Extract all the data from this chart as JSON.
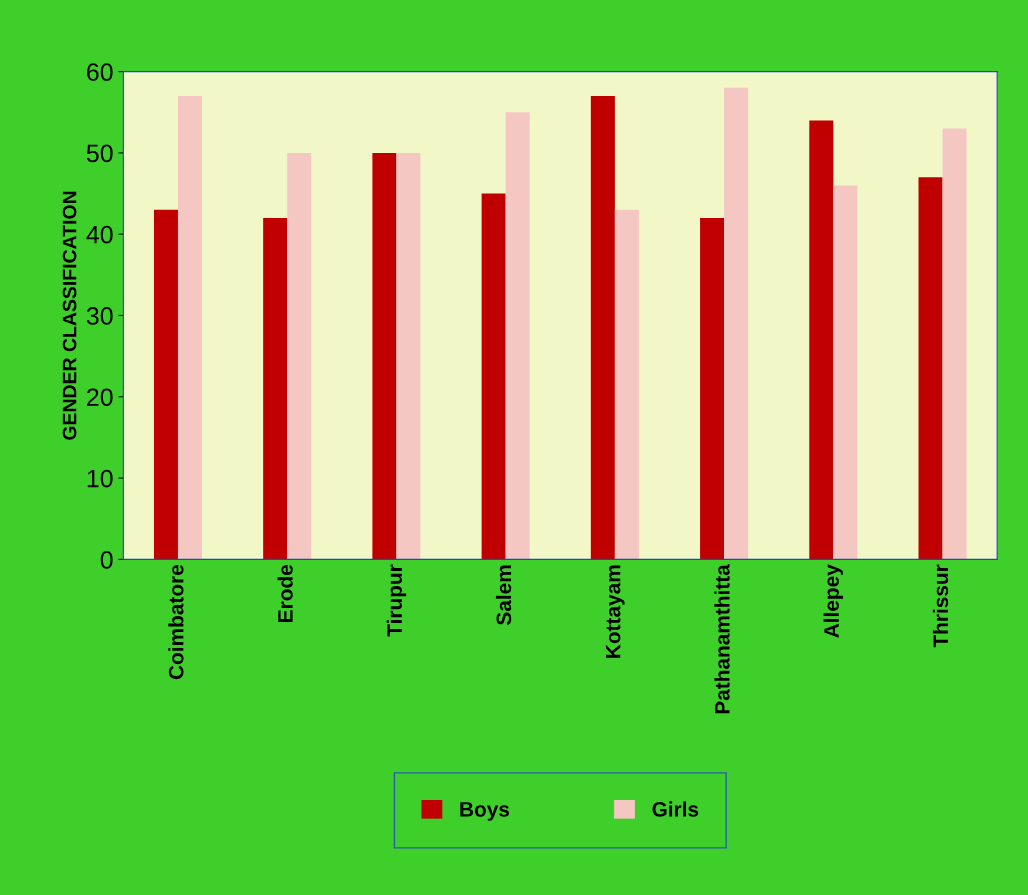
{
  "chart_data": {
    "type": "bar",
    "ylabel": "GENDER CLASSIFICATION",
    "categories": [
      "Coimbatore",
      "Erode",
      "Tirupur",
      "Salem",
      "Kottayam",
      "Pathanamthitta",
      "Allepey",
      "Thrissur"
    ],
    "series": [
      {
        "name": "Boys",
        "color": "#c00000",
        "values": [
          43,
          42,
          50,
          45,
          57,
          42,
          54,
          47
        ]
      },
      {
        "name": "Girls",
        "color": "#f4c7c3",
        "values": [
          57,
          50,
          50,
          55,
          43,
          58,
          46,
          53
        ]
      }
    ],
    "ylim": [
      0,
      60
    ],
    "yticks": [
      0,
      10,
      20,
      30,
      40,
      50,
      60
    ],
    "grid": false,
    "legend": "bottom"
  }
}
